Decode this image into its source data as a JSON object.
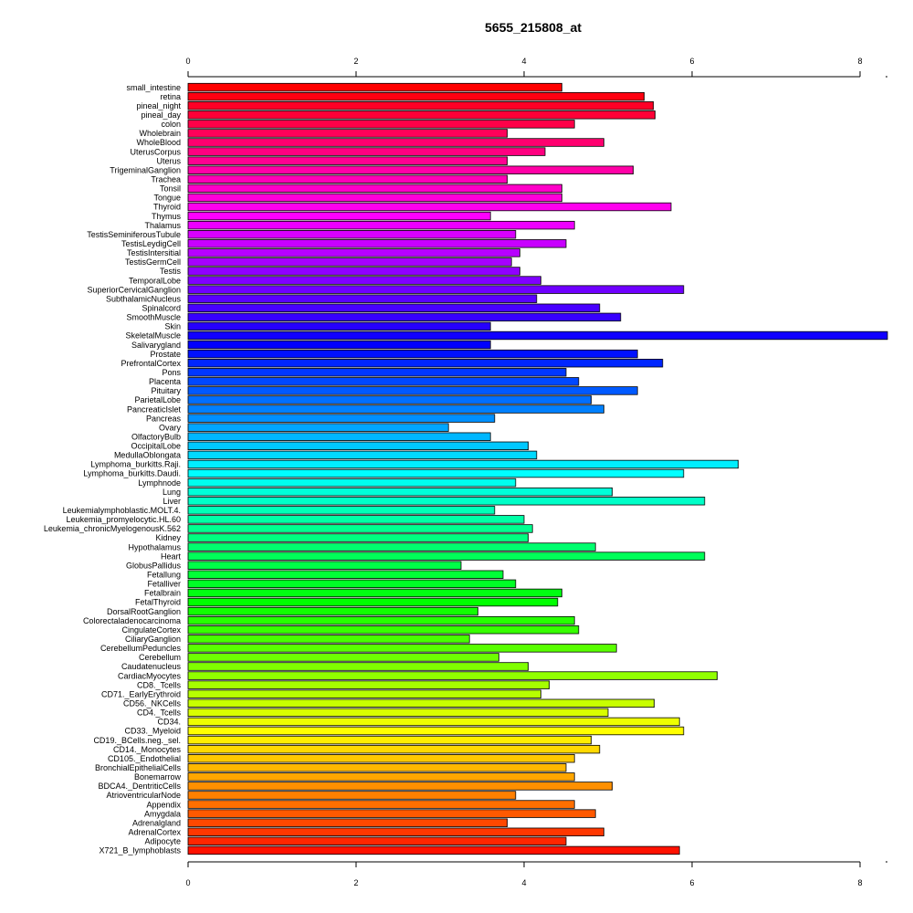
{
  "chart_data": {
    "type": "bar",
    "orientation": "horizontal",
    "title": "5655_215808_at",
    "xlabel": "",
    "ylabel": "",
    "xlim": [
      0,
      8
    ],
    "x_ticks": [
      0,
      2,
      4,
      6,
      8
    ],
    "x_tick_labels": [
      "0",
      "2",
      "4",
      "6",
      "8"
    ],
    "axes": [
      "top",
      "bottom"
    ],
    "grid": false,
    "color_scheme": "rainbow (red at top through magenta, blue, cyan, green, yellow, orange, back to red at bottom)",
    "categories": [
      "small_intestine",
      "retina",
      "pineal_night",
      "pineal_day",
      "colon",
      "Wholebrain",
      "WholeBlood",
      "UterusCorpus",
      "Uterus",
      "TrigeminalGanglion",
      "Trachea",
      "Tonsil",
      "Tongue",
      "Thyroid",
      "Thymus",
      "Thalamus",
      "TestisSeminiferousTubule",
      "TestisLeydigCell",
      "TestisIntersitial",
      "TestisGermCell",
      "Testis",
      "TemporalLobe",
      "SuperiorCervicalGanglion",
      "SubthalamicNucleus",
      "Spinalcord",
      "SmoothMuscle",
      "Skin",
      "SkeletalMuscle",
      "Salivarygland",
      "Prostate",
      "PrefrontalCortex",
      "Pons",
      "Placenta",
      "Pituitary",
      "ParietalLobe",
      "PancreaticIslet",
      "Pancreas",
      "Ovary",
      "OlfactoryBulb",
      "OccipitalLobe",
      "MedullaOblongata",
      "Lymphoma_burkitts.Raji.",
      "Lymphoma_burkitts.Daudi.",
      "Lymphnode",
      "Lung",
      "Liver",
      "Leukemialymphoblastic.MOLT.4.",
      "Leukemia_promyelocytic.HL.60",
      "Leukemia_chronicMyelogenousK.562",
      "Kidney",
      "Hypothalamus",
      "Heart",
      "GlobusPallidus",
      "Fetallung",
      "Fetalliver",
      "Fetalbrain",
      "FetalThyroid",
      "DorsalRootGanglion",
      "Colorectaladenocarcinoma",
      "CingulateCortex",
      "CiliaryGanglion",
      "CerebellumPeduncles",
      "Cerebellum",
      "Caudatenucleus",
      "CardiacMyocytes",
      "CD8._Tcells",
      "CD71._EarlyErythroid",
      "CD56._NKCells",
      "CD4._Tcells",
      "CD34.",
      "CD33._Myeloid",
      "CD19._BCells.neg._sel.",
      "CD14._Monocytes",
      "CD105._Endothelial",
      "BronchialEpithelialCells",
      "Bonemarrow",
      "BDCA4._DentriticCells",
      "AtrioventricularNode",
      "Appendix",
      "Amygdala",
      "Adrenalgland",
      "AdrenalCortex",
      "Adipocyte",
      "X721_B_lymphoblasts"
    ],
    "values": [
      4.45,
      5.43,
      5.54,
      5.56,
      4.6,
      3.8,
      4.95,
      4.25,
      3.8,
      5.3,
      3.8,
      4.45,
      4.45,
      5.75,
      3.6,
      4.6,
      3.9,
      4.5,
      3.95,
      3.85,
      3.95,
      4.2,
      5.9,
      4.15,
      4.9,
      5.15,
      3.6,
      8.35,
      3.6,
      5.35,
      5.65,
      4.5,
      4.65,
      5.35,
      4.8,
      4.95,
      3.65,
      3.1,
      3.6,
      4.05,
      4.15,
      6.55,
      5.9,
      3.9,
      5.05,
      6.15,
      3.65,
      4.0,
      4.1,
      4.05,
      4.85,
      6.15,
      3.25,
      3.75,
      3.9,
      4.45,
      4.4,
      3.45,
      4.6,
      4.65,
      3.35,
      5.1,
      3.7,
      4.05,
      6.3,
      4.3,
      4.2,
      5.55,
      5.0,
      5.85,
      5.9,
      4.8,
      4.9,
      4.6,
      4.5,
      4.6,
      5.05,
      3.9,
      4.6,
      4.85,
      3.8,
      4.95,
      4.5,
      5.85
    ]
  }
}
